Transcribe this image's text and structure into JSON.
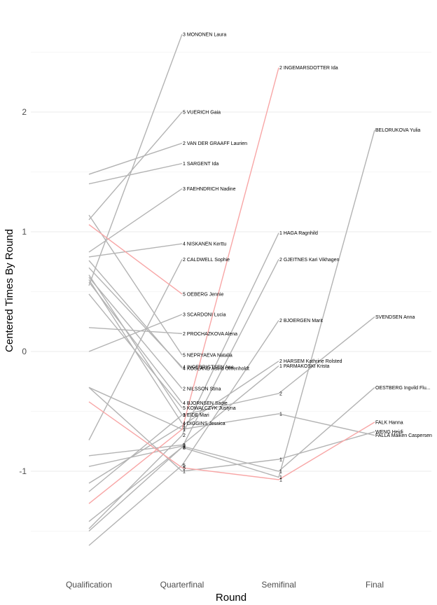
{
  "chart_data": {
    "type": "line",
    "title": "",
    "xlabel": "Round",
    "ylabel": "Centered Times By Round",
    "categories": [
      "Qualification",
      "Quarterfinal",
      "Semifinal",
      "Final"
    ],
    "ylim": [
      -1.75,
      2.75
    ],
    "y_ticks": [
      -1,
      0,
      1,
      2
    ],
    "y_tick_labels": [
      "-1",
      "0",
      "1",
      "2"
    ],
    "colors": {
      "grey": "#b3b3b3",
      "red": "#f8a6a6"
    },
    "series": [
      {
        "name": "MONONEN Laura",
        "color": "grey",
        "values": [
          0.55,
          2.65,
          null,
          null
        ],
        "labels": [
          null,
          "3 MONONEN Laura",
          null,
          null
        ]
      },
      {
        "name": "VUERICH Gaia",
        "color": "grey",
        "values": [
          1.1,
          2.0,
          null,
          null
        ],
        "labels": [
          null,
          "5 VUERICH Gaia",
          null,
          null
        ]
      },
      {
        "name": "VAN DER GRAAFF Laurien",
        "color": "grey",
        "values": [
          1.48,
          1.74,
          null,
          null
        ],
        "labels": [
          null,
          "2 VAN DER GRAAFF Laurien",
          null,
          null
        ]
      },
      {
        "name": "SARGENT Ida",
        "color": "grey",
        "values": [
          1.4,
          1.57,
          null,
          null
        ],
        "labels": [
          null,
          "1 SARGENT Ida",
          null,
          null
        ]
      },
      {
        "name": "FAEHNDRICH Nadine",
        "color": "grey",
        "values": [
          0.83,
          1.36,
          null,
          null
        ],
        "labels": [
          null,
          "3 FAEHNDRICH Nadine",
          null,
          null
        ]
      },
      {
        "name": "NISKANEN Kerttu",
        "color": "grey",
        "values": [
          0.79,
          0.9,
          null,
          null
        ],
        "labels": [
          null,
          "4 NISKANEN Kerttu",
          null,
          null
        ]
      },
      {
        "name": "CALDWELL Sophie",
        "color": "grey",
        "values": [
          -0.74,
          0.77,
          null,
          null
        ],
        "labels": [
          null,
          "2 CALDWELL Sophie",
          null,
          null
        ]
      },
      {
        "name": "OEBERG Jennie",
        "color": "red",
        "values": [
          1.06,
          0.48,
          null,
          null
        ],
        "labels": [
          null,
          "5 OEBERG Jennie",
          null,
          null
        ]
      },
      {
        "name": "SCARDONI Lucia",
        "color": "grey",
        "values": [
          0.0,
          0.31,
          null,
          null
        ],
        "labels": [
          null,
          "3 SCARDONI Lucia",
          null,
          null
        ]
      },
      {
        "name": "PROCHAZKOVA Alena",
        "color": "grey",
        "values": [
          0.2,
          0.15,
          null,
          null
        ],
        "labels": [
          null,
          "2 PROCHAZKOVA Alena",
          null,
          null
        ]
      },
      {
        "name": "NEPRYAEVA Natalia",
        "color": "grey",
        "values": [
          1.14,
          -0.03,
          null,
          null
        ],
        "labels": [
          null,
          "5 NEPRYAEVA Natalia",
          null,
          null
        ]
      },
      {
        "name": "INGEBRIGTSEN Ane",
        "color": "grey",
        "values": [
          0.7,
          -0.13,
          null,
          null
        ],
        "labels": [
          null,
          "4 INGEBRIGTSEN Ane",
          null,
          null
        ]
      },
      {
        "name": "KOSLAND Astrid Uhrenholdt",
        "color": "grey",
        "values": [
          0.76,
          -0.14,
          null,
          null
        ],
        "labels": [
          null,
          "4 KOSLAND Astrid Uhrenholdt",
          null,
          null
        ]
      },
      {
        "name": "NILSSON Stina",
        "color": "grey",
        "values": [
          0.62,
          -0.31,
          null,
          null
        ],
        "labels": [
          null,
          "2 NILSSON Stina",
          null,
          null
        ]
      },
      {
        "name": "BJORNSEN Sadie",
        "color": "grey",
        "values": [
          0.58,
          -0.43,
          null,
          null
        ],
        "labels": [
          null,
          "4 BJORNSEN Sadie",
          null,
          null
        ]
      },
      {
        "name": "KOWALCZYK Justyna",
        "color": "grey",
        "values": [
          0.48,
          -0.47,
          null,
          null
        ],
        "labels": [
          null,
          "5 KOWALCZYK Justyna",
          null,
          null
        ]
      },
      {
        "name": "EIDE Mari",
        "color": "grey",
        "values": [
          0.64,
          -0.53,
          null,
          null
        ],
        "labels": [
          null,
          "3 EIDE Mari",
          null,
          null
        ]
      },
      {
        "name": "DIGGINS Jessica",
        "color": "grey",
        "values": [
          0.6,
          -0.6,
          null,
          null
        ],
        "labels": [
          null,
          "4 DIGGINS Jessica",
          null,
          null
        ]
      },
      {
        "name": "HAGA Ragnhild",
        "color": "grey",
        "values": [
          -1.48,
          -0.7,
          0.99,
          null
        ],
        "labels": [
          null,
          "2",
          "1 HAGA Ragnhild",
          null
        ]
      },
      {
        "name": "GJEITNES Kari Vikhagen",
        "color": "grey",
        "values": [
          -1.42,
          -0.8,
          0.77,
          null
        ],
        "labels": [
          null,
          "2",
          "2 GJEITNES Kari Vikhagen",
          null
        ]
      },
      {
        "name": "BJOERGEN Marit",
        "color": "grey",
        "values": [
          -1.62,
          -0.95,
          0.26,
          null
        ],
        "labels": [
          null,
          "5",
          "2 BJOERGEN Marit",
          null
        ]
      },
      {
        "name": "HARSEM Kathrine Rolsted",
        "color": "grey",
        "values": [
          -1.1,
          -0.62,
          -0.08,
          null
        ],
        "labels": [
          null,
          "4",
          "2 HARSEM Kathrine Rolsted",
          null
        ]
      },
      {
        "name": "PARMAKOSKI Krista",
        "color": "grey",
        "values": [
          -0.87,
          -0.78,
          -0.12,
          null
        ],
        "labels": [
          null,
          "3",
          "1 PARMAKOSKI Krista",
          null
        ]
      },
      {
        "name": "INGEMARSDOTTER Ida",
        "color": "red",
        "values": [
          -1.27,
          -0.65,
          2.37,
          null
        ],
        "labels": [
          null,
          "1",
          "2 INGEMARSDOTTER Ida",
          null
        ]
      },
      {
        "name": "BELORUKOVA Yulia",
        "color": "grey",
        "values": [
          -1.5,
          -0.8,
          -1.05,
          1.85
        ],
        "labels": [
          null,
          "3",
          "1",
          "BELORUKOVA Yulia"
        ]
      },
      {
        "name": "SVENDSEN Anna",
        "color": "grey",
        "values": [
          -1.17,
          -0.53,
          -0.35,
          0.29
        ],
        "labels": [
          null,
          "1",
          "2",
          "SVENDSEN Anna"
        ]
      },
      {
        "name": "OESTBERG Ingvild Flugstad",
        "color": "grey",
        "values": [
          -0.96,
          -0.79,
          -1.0,
          -0.3
        ],
        "labels": [
          null,
          "2",
          "1",
          "OESTBERG Ingvild Flu..."
        ]
      },
      {
        "name": "FALK Hanna",
        "color": "red",
        "values": [
          -0.42,
          -0.97,
          -1.07,
          -0.59
        ],
        "labels": [
          null,
          "5",
          "1",
          "FALK Hanna"
        ]
      },
      {
        "name": "FALLA Maiken Caspersen",
        "color": "grey",
        "values": [
          -0.3,
          -0.65,
          -0.52,
          -0.7
        ],
        "labels": [
          null,
          "1",
          "1",
          "FALLA Maiken Caspersen"
        ]
      },
      {
        "name": "WENG Heidi",
        "color": "grey",
        "values": [
          -0.3,
          -1.0,
          -0.9,
          -0.67
        ],
        "labels": [
          null,
          "1",
          "1",
          "WENG Heidi"
        ]
      }
    ]
  }
}
